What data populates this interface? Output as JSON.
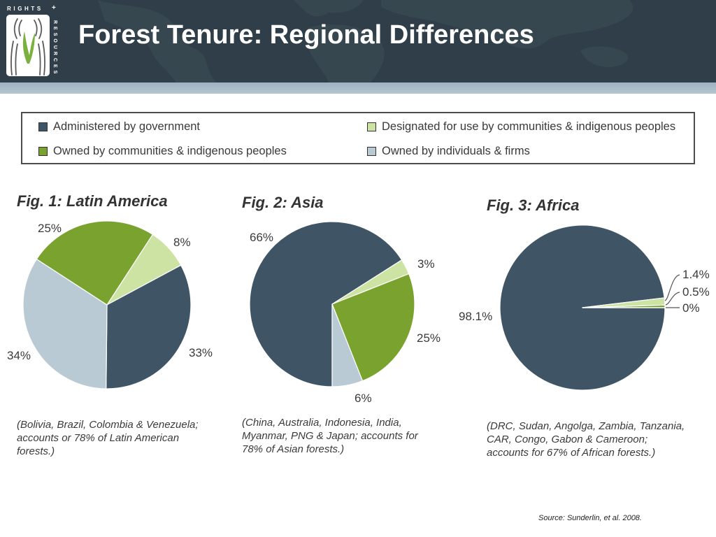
{
  "slide": {
    "title": "Forest Tenure: Regional Differences",
    "source": "Source: Sunderlin, et al. 2008."
  },
  "logo": {
    "top_text": "RIGHTS",
    "plus": "+",
    "side_text": "RESOURCES"
  },
  "legend": {
    "items": [
      {
        "label": "Administered by government",
        "color": "#3f5565"
      },
      {
        "label": "Designated for use by communities & indigenous peoples",
        "color": "#cde3a4"
      },
      {
        "label": "Owned by communities & indigenous peoples",
        "color": "#79a22e"
      },
      {
        "label": "Owned by individuals & firms",
        "color": "#b9cad5"
      }
    ]
  },
  "chart_data": [
    {
      "type": "pie",
      "title": "Fig. 1: Latin America",
      "categories": [
        "Administered by government",
        "Designated for use by communities & indigenous peoples",
        "Owned by communities & indigenous peoples",
        "Owned by individuals & firms"
      ],
      "values": [
        33,
        8,
        25,
        34
      ],
      "labels": [
        "33%",
        "8%",
        "25%",
        "34%"
      ],
      "caption": [
        "(Bolivia, Brazil, Colombia & Venezuela;",
        "accounts or 78% of Latin American",
        "forests.)"
      ]
    },
    {
      "type": "pie",
      "title": "Fig. 2: Asia",
      "categories": [
        "Administered by government",
        "Designated for use by communities & indigenous peoples",
        "Owned by communities & indigenous peoples",
        "Owned by individuals & firms"
      ],
      "values": [
        66,
        3,
        25,
        6
      ],
      "labels": [
        "66%",
        "3%",
        "25%",
        "6%"
      ],
      "caption": [
        "(China, Australia, Indonesia, India,",
        "Myanmar, PNG & Japan; accounts for",
        "78% of Asian forests.)"
      ]
    },
    {
      "type": "pie",
      "title": "Fig. 3: Africa",
      "categories": [
        "Administered by government",
        "Designated for use by communities & indigenous peoples",
        "Owned by communities & indigenous peoples",
        "Owned by individuals & firms"
      ],
      "values": [
        98.1,
        1.4,
        0.5,
        0
      ],
      "labels": [
        "98.1%",
        "1.4%",
        "0.5%",
        "0%"
      ],
      "caption": [
        "(DRC, Sudan, Angolga, Zambia, Tanzania,",
        "CAR, Congo, Gabon & Cameroon;",
        "accounts for 67% of African forests.)"
      ]
    }
  ]
}
